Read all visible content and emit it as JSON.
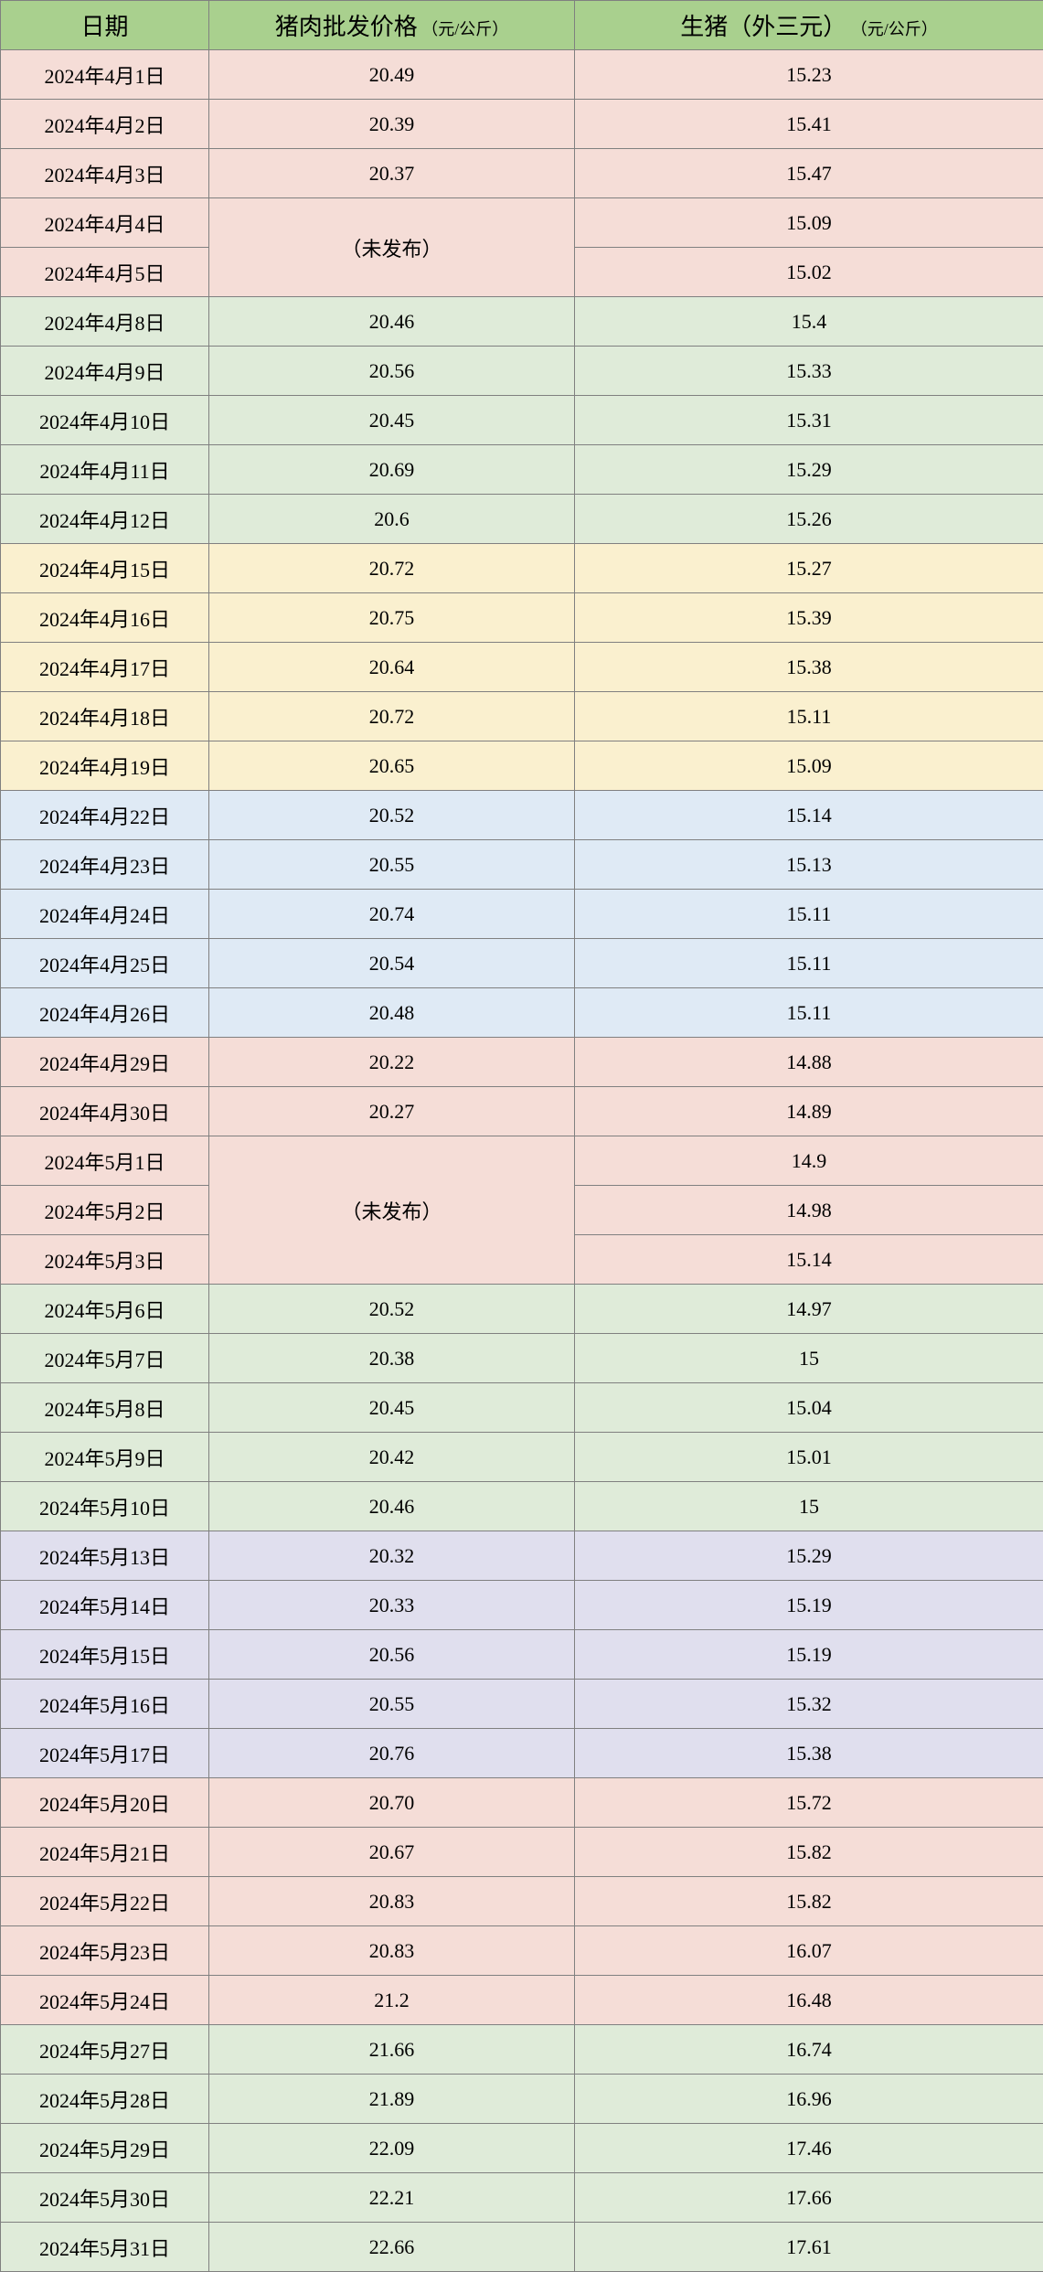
{
  "table": {
    "header_bg": "#a9d08e",
    "columns": [
      {
        "title": "日期",
        "unit": ""
      },
      {
        "title": "猪肉批发价格",
        "unit": "（元/公斤）"
      },
      {
        "title": "生猪（外三元）",
        "unit": "（元/公斤）"
      }
    ],
    "not_published_label": "（未发布）",
    "row_colors": {
      "pink": "#f5ddd7",
      "green": "#dfebd9",
      "yellow": "#faf0cf",
      "blue": "#dfeaf5",
      "purple": "#e0dfee"
    },
    "rows": [
      {
        "date": "2024年4月1日",
        "wholesale": "20.49",
        "live": "15.23",
        "color": "pink"
      },
      {
        "date": "2024年4月2日",
        "wholesale": "20.39",
        "live": "15.41",
        "color": "pink"
      },
      {
        "date": "2024年4月3日",
        "wholesale": "20.37",
        "live": "15.47",
        "color": "pink"
      },
      {
        "date": "2024年4月4日",
        "wholesale": null,
        "live": "15.09",
        "color": "pink",
        "merge_start": true,
        "merge_span": 2
      },
      {
        "date": "2024年4月5日",
        "wholesale": null,
        "live": "15.02",
        "color": "pink",
        "merged": true
      },
      {
        "date": "2024年4月8日",
        "wholesale": "20.46",
        "live": "15.4",
        "color": "green"
      },
      {
        "date": "2024年4月9日",
        "wholesale": "20.56",
        "live": "15.33",
        "color": "green"
      },
      {
        "date": "2024年4月10日",
        "wholesale": "20.45",
        "live": "15.31",
        "color": "green"
      },
      {
        "date": "2024年4月11日",
        "wholesale": "20.69",
        "live": "15.29",
        "color": "green"
      },
      {
        "date": "2024年4月12日",
        "wholesale": "20.6",
        "live": "15.26",
        "color": "green"
      },
      {
        "date": "2024年4月15日",
        "wholesale": "20.72",
        "live": "15.27",
        "color": "yellow"
      },
      {
        "date": "2024年4月16日",
        "wholesale": "20.75",
        "live": "15.39",
        "color": "yellow"
      },
      {
        "date": "2024年4月17日",
        "wholesale": "20.64",
        "live": "15.38",
        "color": "yellow"
      },
      {
        "date": "2024年4月18日",
        "wholesale": "20.72",
        "live": "15.11",
        "color": "yellow"
      },
      {
        "date": "2024年4月19日",
        "wholesale": "20.65",
        "live": "15.09",
        "color": "yellow"
      },
      {
        "date": "2024年4月22日",
        "wholesale": "20.52",
        "live": "15.14",
        "color": "blue"
      },
      {
        "date": "2024年4月23日",
        "wholesale": "20.55",
        "live": "15.13",
        "color": "blue"
      },
      {
        "date": "2024年4月24日",
        "wholesale": "20.74",
        "live": "15.11",
        "color": "blue"
      },
      {
        "date": "2024年4月25日",
        "wholesale": "20.54",
        "live": "15.11",
        "color": "blue"
      },
      {
        "date": "2024年4月26日",
        "wholesale": "20.48",
        "live": "15.11",
        "color": "blue"
      },
      {
        "date": "2024年4月29日",
        "wholesale": "20.22",
        "live": "14.88",
        "color": "pink"
      },
      {
        "date": "2024年4月30日",
        "wholesale": "20.27",
        "live": "14.89",
        "color": "pink"
      },
      {
        "date": "2024年5月1日",
        "wholesale": null,
        "live": "14.9",
        "color": "pink",
        "merge_start": true,
        "merge_span": 3
      },
      {
        "date": "2024年5月2日",
        "wholesale": null,
        "live": "14.98",
        "color": "pink",
        "merged": true
      },
      {
        "date": "2024年5月3日",
        "wholesale": null,
        "live": "15.14",
        "color": "pink",
        "merged": true
      },
      {
        "date": "2024年5月6日",
        "wholesale": "20.52",
        "live": "14.97",
        "color": "green"
      },
      {
        "date": "2024年5月7日",
        "wholesale": "20.38",
        "live": "15",
        "color": "green"
      },
      {
        "date": "2024年5月8日",
        "wholesale": "20.45",
        "live": "15.04",
        "color": "green"
      },
      {
        "date": "2024年5月9日",
        "wholesale": "20.42",
        "live": "15.01",
        "color": "green"
      },
      {
        "date": "2024年5月10日",
        "wholesale": "20.46",
        "live": "15",
        "color": "green"
      },
      {
        "date": "2024年5月13日",
        "wholesale": "20.32",
        "live": "15.29",
        "color": "purple"
      },
      {
        "date": "2024年5月14日",
        "wholesale": "20.33",
        "live": "15.19",
        "color": "purple"
      },
      {
        "date": "2024年5月15日",
        "wholesale": "20.56",
        "live": "15.19",
        "color": "purple"
      },
      {
        "date": "2024年5月16日",
        "wholesale": "20.55",
        "live": "15.32",
        "color": "purple"
      },
      {
        "date": "2024年5月17日",
        "wholesale": "20.76",
        "live": "15.38",
        "color": "purple"
      },
      {
        "date": "2024年5月20日",
        "wholesale": "20.70",
        "live": "15.72",
        "color": "pink"
      },
      {
        "date": "2024年5月21日",
        "wholesale": "20.67",
        "live": "15.82",
        "color": "pink"
      },
      {
        "date": "2024年5月22日",
        "wholesale": "20.83",
        "live": "15.82",
        "color": "pink"
      },
      {
        "date": "2024年5月23日",
        "wholesale": "20.83",
        "live": "16.07",
        "color": "pink"
      },
      {
        "date": "2024年5月24日",
        "wholesale": "21.2",
        "live": "16.48",
        "color": "pink"
      },
      {
        "date": "2024年5月27日",
        "wholesale": "21.66",
        "live": "16.74",
        "color": "green"
      },
      {
        "date": "2024年5月28日",
        "wholesale": "21.89",
        "live": "16.96",
        "color": "green"
      },
      {
        "date": "2024年5月29日",
        "wholesale": "22.09",
        "live": "17.46",
        "color": "green"
      },
      {
        "date": "2024年5月30日",
        "wholesale": "22.21",
        "live": "17.66",
        "color": "green"
      },
      {
        "date": "2024年5月31日",
        "wholesale": "22.66",
        "live": "17.61",
        "color": "green"
      }
    ]
  }
}
